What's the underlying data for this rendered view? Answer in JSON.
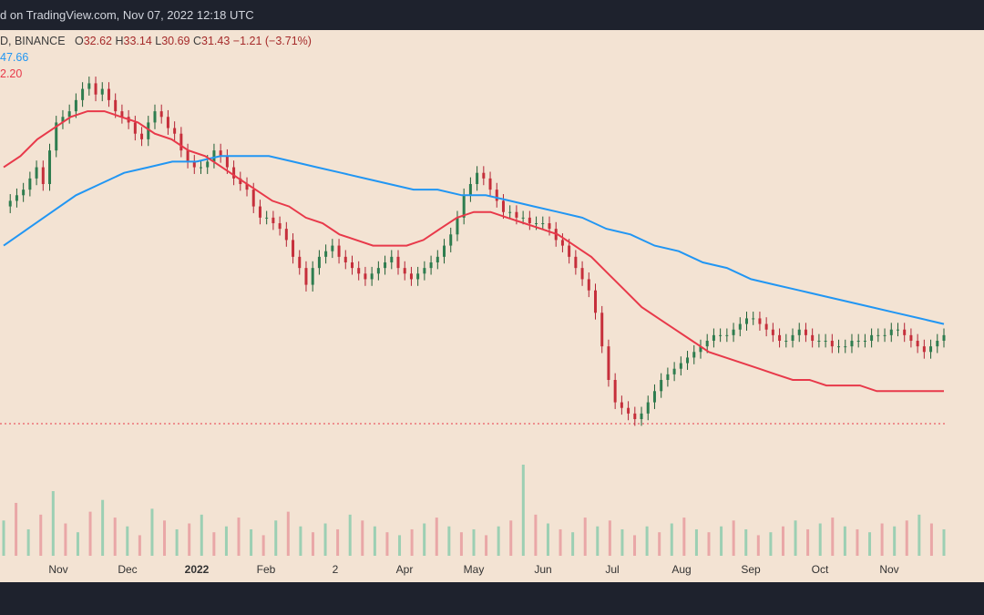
{
  "header": {
    "published": "d on TradingView.com, Nov 07, 2022 12:18 UTC"
  },
  "legend": {
    "symbol": "D, BINANCE",
    "open_label": "O",
    "open": "32.62",
    "high_label": "H",
    "high": "33.14",
    "low_label": "L",
    "low": "30.69",
    "close_label": "C",
    "close": "31.43",
    "change": "−1.21 (−3.71%)",
    "ma200": "47.66",
    "ma50": "2.20"
  },
  "chart_data": {
    "type": "candlestick",
    "x_ticks": [
      "Nov",
      "Dec",
      "2022",
      "Feb",
      "2",
      "Apr",
      "May",
      "Jun",
      "Jul",
      "Aug",
      "Sep",
      "Oct",
      "Nov"
    ],
    "last_close": 31.43,
    "last_open": 32.62,
    "last_high": 33.14,
    "last_low": 30.69,
    "series": [
      {
        "name": "price",
        "values": [
          45,
          46,
          47,
          48,
          50,
          52,
          49,
          55,
          60,
          61,
          62,
          64,
          66,
          67,
          65,
          66,
          64,
          62,
          61,
          60,
          58,
          57,
          60,
          62,
          61,
          59,
          58,
          55,
          53,
          52,
          52,
          53,
          55,
          54,
          52,
          50,
          49,
          48,
          45,
          43,
          43,
          42,
          41,
          39,
          36,
          34,
          31,
          34,
          36,
          37,
          38,
          36,
          35,
          34,
          33,
          32,
          33,
          34,
          35,
          36,
          34,
          33,
          32,
          33,
          34,
          35,
          36,
          38,
          40,
          43,
          47,
          49,
          51,
          50,
          48,
          46,
          44,
          44,
          43,
          43,
          42,
          42,
          42,
          41,
          39,
          38,
          36,
          34,
          32,
          30,
          26,
          20,
          14,
          10,
          9,
          8,
          7,
          8,
          10,
          12,
          14,
          15,
          16,
          17,
          18,
          19,
          20,
          21,
          22,
          22,
          22,
          23,
          24,
          25,
          25,
          24,
          23,
          22,
          21,
          21,
          22,
          23,
          22,
          21,
          21,
          21,
          20,
          20,
          20,
          21,
          21,
          21,
          22,
          22,
          22,
          23,
          23,
          22,
          21,
          20,
          19,
          20,
          21,
          22
        ]
      },
      {
        "name": "ma_fast",
        "values": [
          52,
          54,
          57,
          59,
          61,
          62,
          62,
          61,
          60,
          58,
          57,
          55,
          54,
          52,
          50,
          48,
          46,
          45,
          43,
          42,
          40,
          39,
          38,
          38,
          38,
          39,
          41,
          43,
          44,
          44,
          43,
          42,
          41,
          40,
          38,
          36,
          33,
          30,
          27,
          25,
          23,
          21,
          19,
          18,
          17,
          16,
          15,
          14,
          14,
          13,
          13,
          13,
          12,
          12,
          12,
          12,
          12
        ]
      },
      {
        "name": "ma_slow",
        "values": [
          38,
          41,
          44,
          47,
          49,
          51,
          52,
          53,
          53,
          54,
          54,
          54,
          53,
          52,
          51,
          50,
          49,
          48,
          48,
          47,
          47,
          46,
          45,
          44,
          43,
          41,
          40,
          38,
          37,
          35,
          34,
          32,
          31,
          30,
          29,
          28,
          27,
          26,
          25,
          24
        ]
      }
    ],
    "volume": [
      12,
      18,
      9,
      14,
      22,
      11,
      8,
      15,
      19,
      13,
      10,
      7,
      16,
      12,
      9,
      11,
      14,
      8,
      10,
      13,
      9,
      7,
      12,
      15,
      10,
      8,
      11,
      9,
      14,
      12,
      10,
      8,
      7,
      9,
      11,
      13,
      10,
      8,
      9,
      7,
      10,
      12,
      31,
      14,
      11,
      9,
      8,
      13,
      10,
      12,
      9,
      7,
      10,
      8,
      11,
      13,
      9,
      8,
      10,
      12,
      9,
      7,
      8,
      10,
      12,
      9,
      11,
      13,
      10,
      9,
      8,
      11,
      10,
      12,
      14,
      11,
      9
    ]
  }
}
